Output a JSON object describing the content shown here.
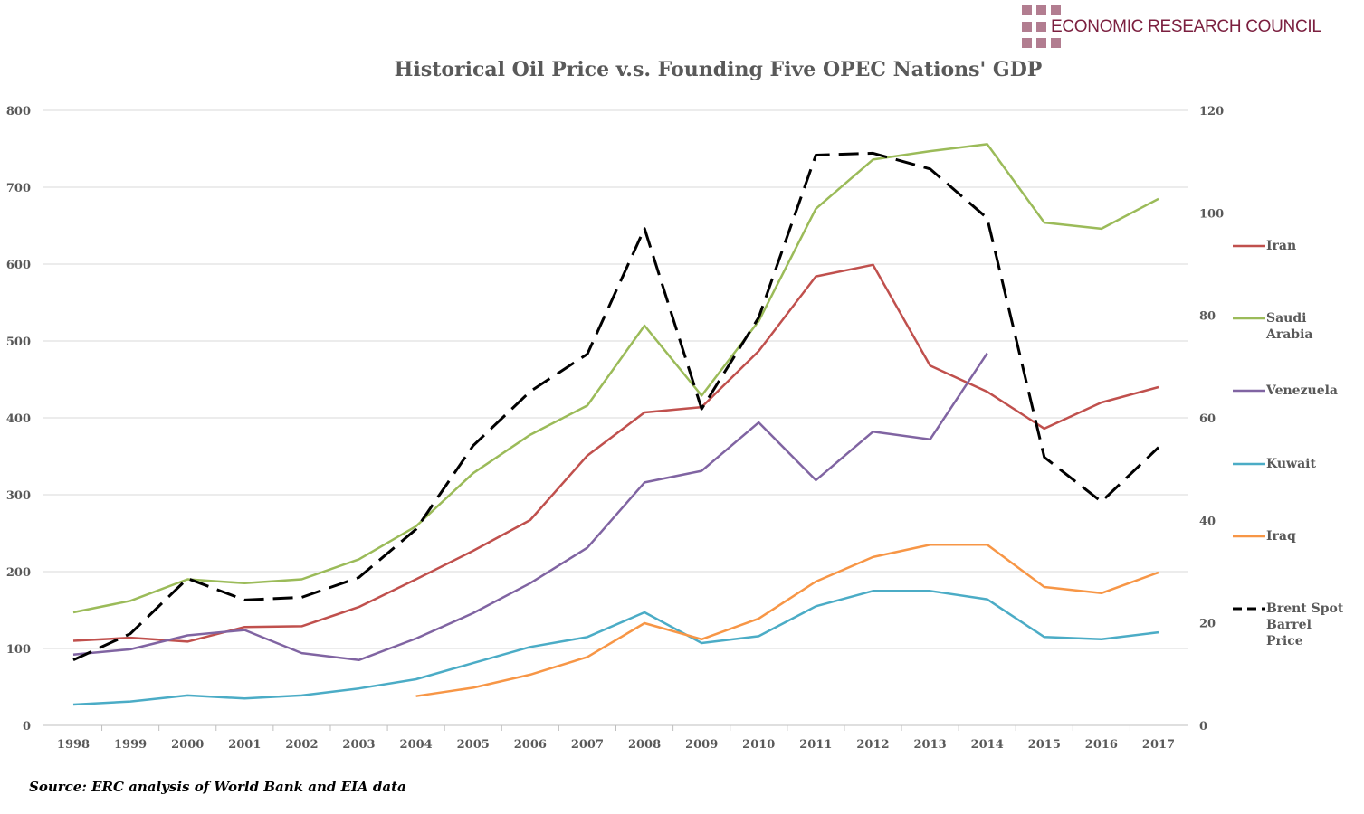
{
  "logo": {
    "text": "ECONOMIC RESEARCH COUNCIL",
    "color": "#7b1f3f"
  },
  "source": "Source: ERC analysis of World Bank and EIA data",
  "chart_data": {
    "type": "line",
    "title": "Historical Oil Price v.s. Founding Five OPEC Nations' GDP",
    "x": [
      1998,
      1999,
      2000,
      2001,
      2002,
      2003,
      2004,
      2005,
      2006,
      2007,
      2008,
      2009,
      2010,
      2011,
      2012,
      2013,
      2014,
      2015,
      2016,
      2017
    ],
    "y_left": {
      "range": [
        0,
        800
      ],
      "ticks": [
        0,
        100,
        200,
        300,
        400,
        500,
        600,
        700,
        800
      ]
    },
    "y_right": {
      "range": [
        0,
        120
      ],
      "ticks": [
        0,
        20,
        40,
        60,
        80,
        100,
        120
      ]
    },
    "grid": true,
    "legend_placement": "right",
    "series": [
      {
        "name": "Iran",
        "axis": "left",
        "color": "#c0504d",
        "dash": false,
        "values": [
          110,
          114,
          109,
          128,
          129,
          154,
          190,
          227,
          267,
          351,
          407,
          414,
          487,
          584,
          599,
          468,
          434,
          386,
          420,
          440
        ]
      },
      {
        "name": "Saudi Arabia",
        "axis": "left",
        "color": "#9bbb59",
        "dash": false,
        "values": [
          147,
          162,
          190,
          185,
          190,
          216,
          259,
          328,
          378,
          416,
          520,
          429,
          526,
          672,
          736,
          747,
          756,
          654,
          646,
          685
        ]
      },
      {
        "name": "Venezuela",
        "axis": "left",
        "color": "#8064a2",
        "dash": false,
        "values": [
          92,
          99,
          117,
          124,
          94,
          85,
          113,
          146,
          185,
          231,
          316,
          331,
          394,
          319,
          382,
          372,
          484,
          null,
          null,
          null
        ]
      },
      {
        "name": "Kuwait",
        "axis": "left",
        "color": "#4bacc6",
        "dash": false,
        "values": [
          27,
          31,
          39,
          35,
          39,
          48,
          60,
          81,
          102,
          115,
          147,
          107,
          116,
          155,
          175,
          175,
          164,
          115,
          112,
          121
        ]
      },
      {
        "name": "Iraq",
        "axis": "left",
        "color": "#f79646",
        "dash": false,
        "values": [
          null,
          null,
          null,
          null,
          null,
          null,
          38,
          49,
          66,
          89,
          133,
          112,
          139,
          187,
          219,
          235,
          235,
          180,
          172,
          199
        ]
      },
      {
        "name": "Brent Spot Barrel Price",
        "axis": "right",
        "color": "#000000",
        "dash": true,
        "values": [
          12.76,
          17.9,
          28.66,
          24.46,
          24.99,
          28.85,
          38.26,
          54.57,
          65.16,
          72.44,
          96.94,
          61.74,
          79.61,
          111.26,
          111.63,
          108.56,
          98.97,
          52.32,
          43.64,
          54.25
        ]
      }
    ]
  }
}
